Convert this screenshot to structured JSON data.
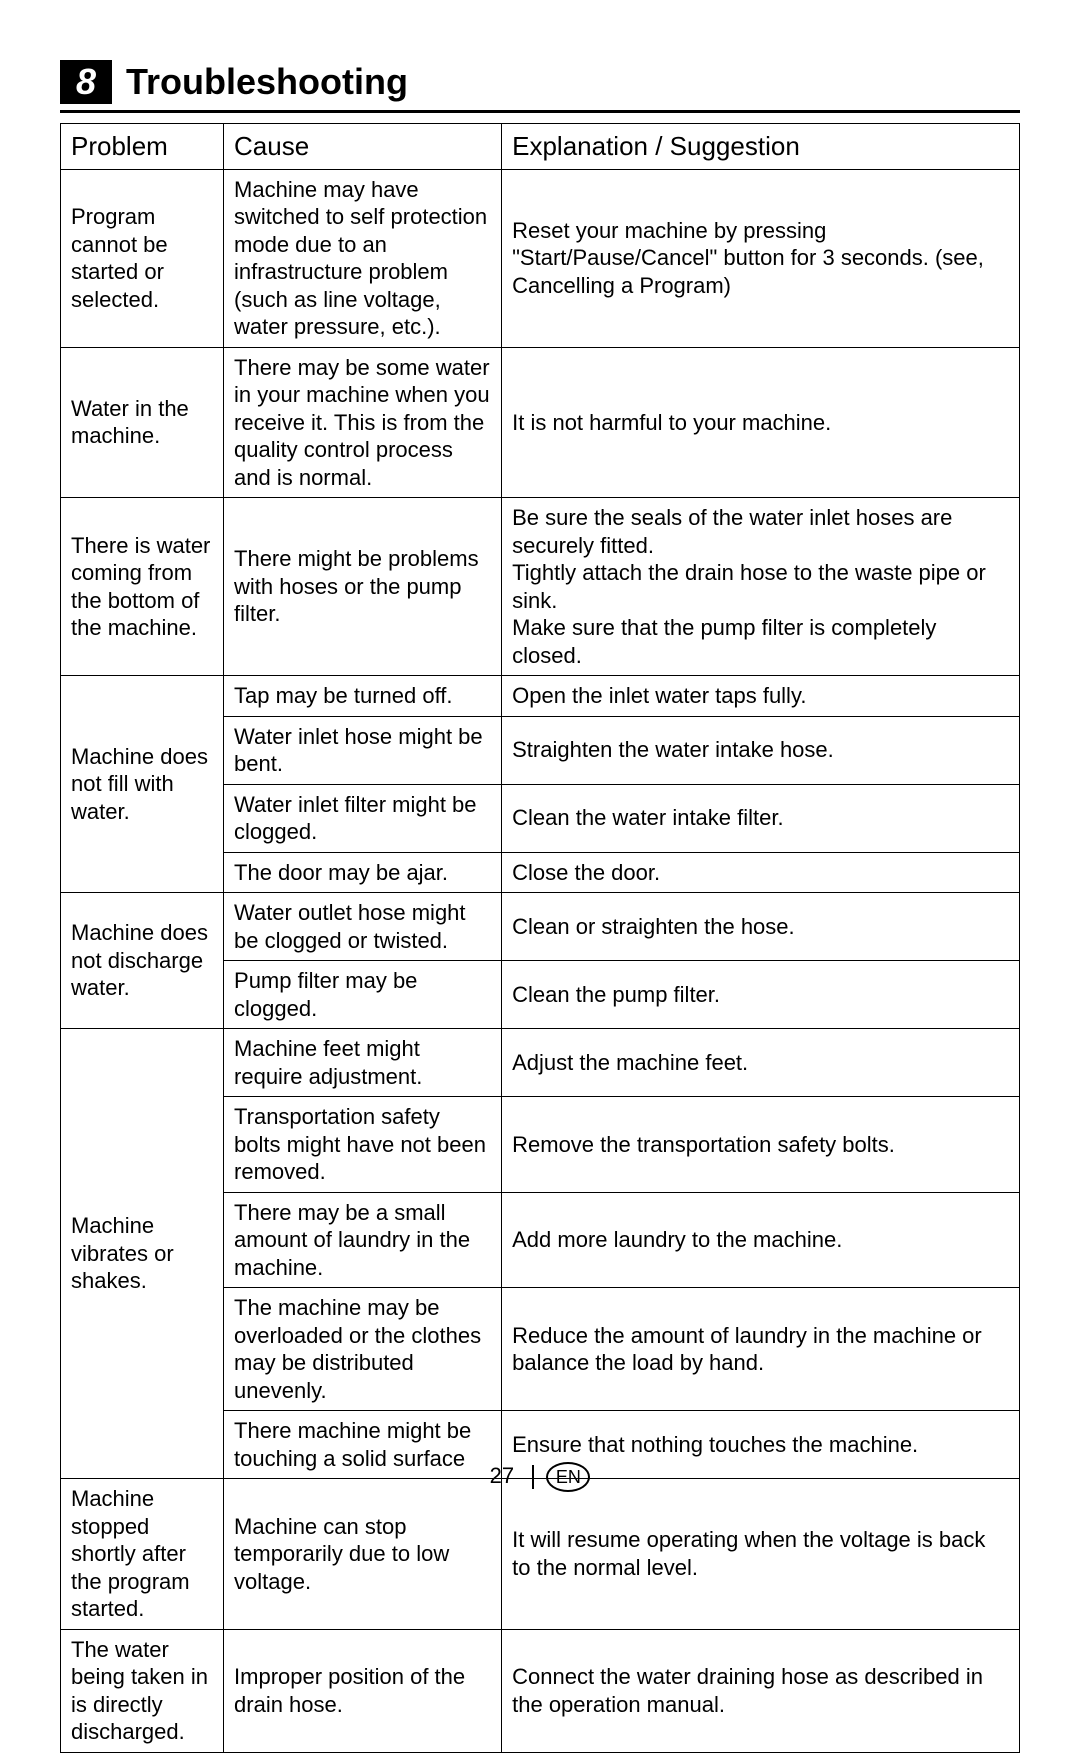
{
  "section": {
    "number": "8",
    "title": "Troubleshooting"
  },
  "table": {
    "headers": {
      "problem": "Problem",
      "cause": "Cause",
      "suggestion": "Explanation / Suggestion"
    },
    "rows": [
      {
        "problem": "Program cannot be started or selected.",
        "cause": "Machine may have switched to self protection mode due to an infrastructure problem (such as line voltage, water pressure, etc.).",
        "suggestion": "Reset your machine by pressing \"Start/Pause/Cancel\" button for 3 seconds. (see, Cancelling a Program)",
        "pspan": 1
      },
      {
        "problem": "Water in the machine.",
        "cause": "There may be some water in your machine when you receive it. This is from the quality control process and is normal.",
        "suggestion": "It is not harmful to your machine.",
        "pspan": 1
      },
      {
        "problem": "There is water coming from the bottom of the machine.",
        "cause": "There might be problems with hoses or the pump filter.",
        "suggestion": "Be sure the seals of the water inlet hoses are securely fitted.\nTightly attach the drain hose to the waste pipe or sink.\nMake sure that the pump filter is completely closed.",
        "pspan": 1
      },
      {
        "problem": "Machine does not fill with water.",
        "cause": "Tap may be turned off.",
        "suggestion": "Open the inlet water taps fully.",
        "pspan": 4
      },
      {
        "cause": "Water inlet hose might be bent.",
        "suggestion": "Straighten the water intake hose."
      },
      {
        "cause": "Water inlet filter might be clogged.",
        "suggestion": "Clean the water intake filter."
      },
      {
        "cause": "The door may be ajar.",
        "suggestion": "Close the door."
      },
      {
        "problem": "Machine does not discharge water.",
        "cause": "Water outlet hose might be clogged or twisted.",
        "suggestion": "Clean or straighten the hose.",
        "pspan": 2
      },
      {
        "cause": "Pump filter may be clogged.",
        "suggestion": "Clean the pump filter."
      },
      {
        "problem": "Machine vibrates or shakes.",
        "cause": "Machine feet might require adjustment.",
        "suggestion": "Adjust the machine feet.",
        "pspan": 5
      },
      {
        "cause": "Transportation safety bolts might have not been removed.",
        "suggestion": "Remove the transportation safety bolts."
      },
      {
        "cause": "There may be a small amount of laundry in the machine.",
        "suggestion": "Add more laundry to the machine."
      },
      {
        "cause": "The machine may be overloaded or the clothes may be distributed unevenly.",
        "suggestion": "Reduce the amount of laundry in the machine or balance the load by hand."
      },
      {
        "cause": "There machine might be touching a solid surface",
        "suggestion": "Ensure that nothing touches the machine."
      },
      {
        "problem": "Machine stopped shortly after the program started.",
        "cause": "Machine can stop temporarily due to low voltage.",
        "suggestion": "It will resume operating when the voltage is back to the normal level.",
        "pspan": 1
      },
      {
        "problem": "The water being taken in is directly discharged.",
        "cause": "Improper position of the drain hose.",
        "suggestion": "Connect the water draining hose as described in the operation manual.",
        "pspan": 1
      }
    ]
  },
  "footer": {
    "page": "27",
    "lang": "EN"
  }
}
